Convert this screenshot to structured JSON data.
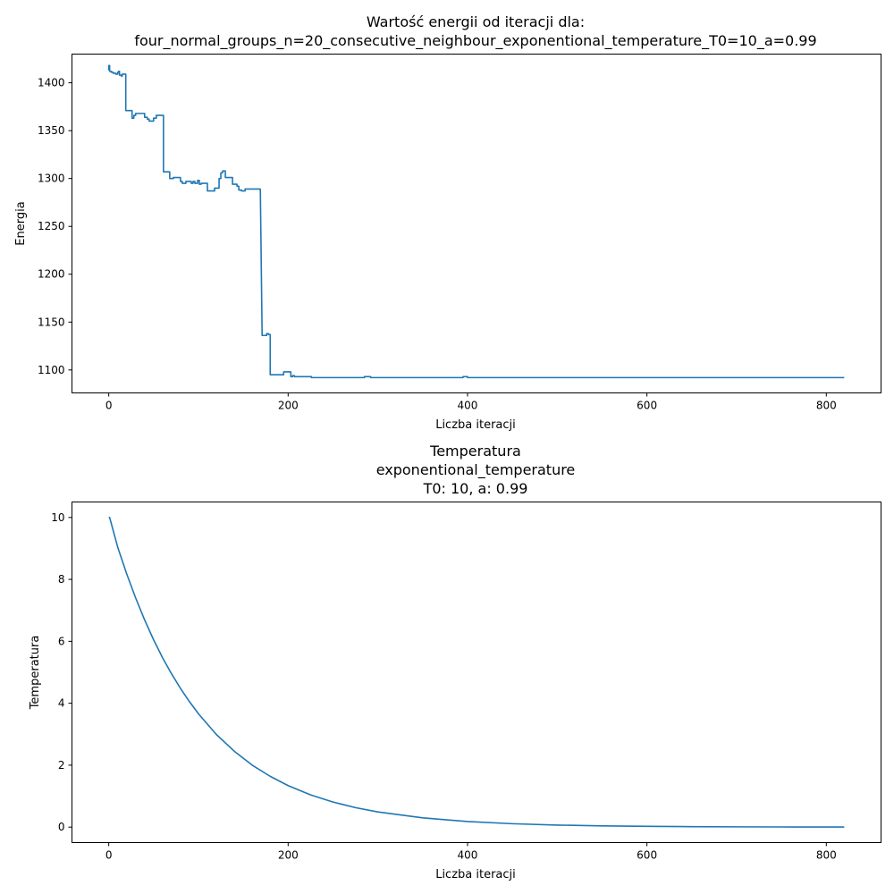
{
  "chart_data": [
    {
      "type": "line",
      "title": [
        "Wartość energii od iteracji dla:",
        "four_normal_groups_n=20_consecutive_neighbour_exponentional_temperature_T0=10_a=0.99"
      ],
      "xlabel": "Liczba iteracji",
      "ylabel": "Energia",
      "xlim": [
        -41,
        861
      ],
      "ylim": [
        1076,
        1430
      ],
      "xticks": [
        0,
        200,
        400,
        600,
        800
      ],
      "yticks": [
        1100,
        1150,
        1200,
        1250,
        1300,
        1350,
        1400
      ],
      "grid": false,
      "color": "#1f77b4",
      "series": [
        {
          "x": [
            0,
            0,
            1,
            1,
            3,
            3,
            5,
            5,
            8,
            8,
            10,
            10,
            11,
            11,
            12,
            12,
            14,
            14,
            15,
            15,
            19,
            19,
            26,
            26,
            28,
            28,
            30,
            30,
            40,
            40,
            43,
            43,
            45,
            45,
            50,
            50,
            53,
            53,
            55,
            55,
            61,
            61,
            68,
            68,
            72,
            72,
            80,
            80,
            82,
            82,
            86,
            86,
            92,
            92,
            94,
            94,
            96,
            96,
            99,
            99,
            101,
            101,
            103,
            103,
            110,
            110,
            118,
            118,
            123,
            123,
            125,
            125,
            127,
            127,
            130,
            130,
            138,
            138,
            143,
            143,
            145,
            145,
            148,
            148,
            152,
            152,
            169,
            171,
            176,
            176,
            178,
            178,
            180,
            180,
            195,
            195,
            203,
            203,
            205,
            205,
            207,
            207,
            220,
            220,
            226,
            226,
            230,
            230,
            285,
            285,
            292,
            292,
            395,
            395,
            400,
            400,
            820
          ],
          "y": [
            1413,
            1418,
            1418,
            1412,
            1412,
            1411,
            1411,
            1410,
            1410,
            1409,
            1409,
            1411,
            1411,
            1412,
            1412,
            1408,
            1408,
            1407,
            1407,
            1409,
            1409,
            1371,
            1371,
            1363,
            1363,
            1366,
            1366,
            1368,
            1368,
            1364,
            1364,
            1362,
            1362,
            1360,
            1360,
            1363,
            1363,
            1366,
            1366,
            1366,
            1366,
            1307,
            1307,
            1300,
            1300,
            1301,
            1301,
            1297,
            1297,
            1295,
            1295,
            1297,
            1297,
            1295,
            1295,
            1297,
            1297,
            1295,
            1295,
            1298,
            1298,
            1294,
            1294,
            1295,
            1295,
            1287,
            1287,
            1290,
            1290,
            1300,
            1300,
            1306,
            1306,
            1308,
            1308,
            1301,
            1301,
            1294,
            1294,
            1292,
            1292,
            1288,
            1288,
            1287,
            1287,
            1289,
            1289,
            1136,
            1136,
            1138,
            1138,
            1137,
            1137,
            1095,
            1095,
            1098,
            1098,
            1093,
            1093,
            1094,
            1094,
            1093,
            1093,
            1093,
            1093,
            1092,
            1092,
            1092,
            1092,
            1093,
            1093,
            1092,
            1092,
            1093,
            1093,
            1092,
            1092
          ]
        }
      ]
    },
    {
      "type": "line",
      "title": [
        "Temperatura",
        "exponentional_temperature",
        "T0: 10, a: 0.99"
      ],
      "xlabel": "Liczba iteracji",
      "ylabel": "Temperatura",
      "xlim": [
        -41,
        861
      ],
      "ylim": [
        -0.5,
        10.5
      ],
      "xticks": [
        0,
        200,
        400,
        600,
        800
      ],
      "yticks": [
        0,
        2,
        4,
        6,
        8,
        10
      ],
      "grid": false,
      "color": "#1f77b4",
      "series": [
        {
          "x": [
            0,
            1,
            10,
            20,
            30,
            40,
            50,
            60,
            70,
            80,
            90,
            100,
            120,
            140,
            160,
            180,
            200,
            225,
            250,
            275,
            300,
            350,
            400,
            450,
            500,
            550,
            600,
            650,
            700,
            750,
            800,
            820
          ],
          "y": [
            10,
            10,
            9.04,
            8.18,
            7.4,
            6.69,
            6.05,
            5.47,
            4.95,
            4.48,
            4.05,
            3.66,
            2.99,
            2.45,
            2.0,
            1.64,
            1.34,
            1.04,
            0.81,
            0.63,
            0.49,
            0.3,
            0.18,
            0.11,
            0.066,
            0.04,
            0.024,
            0.015,
            0.0088,
            0.0054,
            0.0032,
            0.0026
          ]
        }
      ]
    }
  ]
}
